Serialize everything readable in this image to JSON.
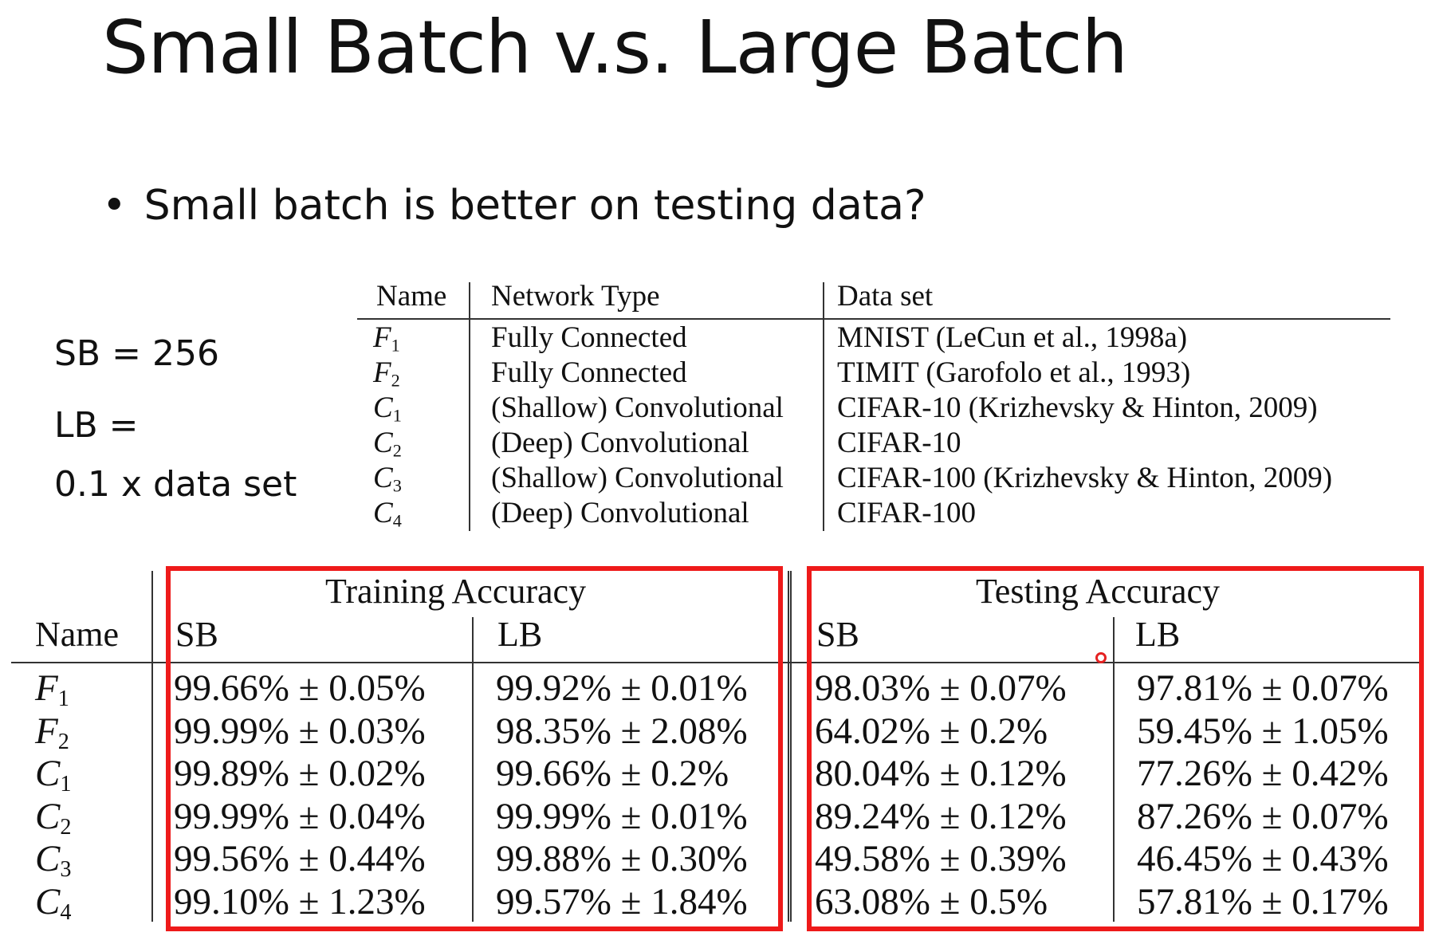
{
  "slide": {
    "title": "Small Batch v.s. Large Batch",
    "bullet_marker": "•",
    "bullet": "Small batch is better on testing data?",
    "sb_text": "SB = 256",
    "lb_text_line1": "LB =",
    "lb_text_line2": "0.1 x data set"
  },
  "network_table": {
    "headers": [
      "Name",
      "Network Type",
      "Data set"
    ],
    "rows": [
      {
        "name": "F",
        "sub": "1",
        "type": "Fully Connected",
        "dataset": "MNIST (LeCun et al., 1998a)"
      },
      {
        "name": "F",
        "sub": "2",
        "type": "Fully Connected",
        "dataset": "TIMIT (Garofolo et al., 1993)"
      },
      {
        "name": "C",
        "sub": "1",
        "type": "(Shallow) Convolutional",
        "dataset": "CIFAR-10 (Krizhevsky & Hinton, 2009)"
      },
      {
        "name": "C",
        "sub": "2",
        "type": "(Deep) Convolutional",
        "dataset": "CIFAR-10"
      },
      {
        "name": "C",
        "sub": "3",
        "type": "(Shallow) Convolutional",
        "dataset": "CIFAR-100 (Krizhevsky & Hinton, 2009)"
      },
      {
        "name": "C",
        "sub": "4",
        "type": "(Deep) Convolutional",
        "dataset": "CIFAR-100"
      }
    ]
  },
  "accuracy_table": {
    "name_header": "Name",
    "training_header": "Training Accuracy",
    "testing_header": "Testing Accuracy",
    "sb_label": "SB",
    "lb_label": "LB",
    "rows": [
      {
        "name": "F",
        "sub": "1",
        "train_sb": "99.66% ± 0.05%",
        "train_lb": "99.92% ± 0.01%",
        "test_sb": "98.03% ± 0.07%",
        "test_lb": "97.81% ± 0.07%"
      },
      {
        "name": "F",
        "sub": "2",
        "train_sb": "99.99% ± 0.03%",
        "train_lb": "98.35% ± 2.08%",
        "test_sb": "64.02% ± 0.2%",
        "test_lb": "59.45% ± 1.05%"
      },
      {
        "name": "C",
        "sub": "1",
        "train_sb": "99.89% ± 0.02%",
        "train_lb": "99.66% ± 0.2%",
        "test_sb": "80.04% ± 0.12%",
        "test_lb": "77.26% ± 0.42%"
      },
      {
        "name": "C",
        "sub": "2",
        "train_sb": "99.99% ± 0.04%",
        "train_lb": "99.99% ± 0.01%",
        "test_sb": "89.24% ± 0.12%",
        "test_lb": "87.26% ± 0.07%"
      },
      {
        "name": "C",
        "sub": "3",
        "train_sb": "99.56% ± 0.44%",
        "train_lb": "99.88% ± 0.30%",
        "test_sb": "49.58% ± 0.39%",
        "test_lb": "46.45% ± 0.43%"
      },
      {
        "name": "C",
        "sub": "4",
        "train_sb": "99.10% ± 1.23%",
        "train_lb": "99.57% ± 1.84%",
        "test_sb": "63.08% ± 0.5%",
        "test_lb": "57.81% ± 0.17%"
      }
    ]
  },
  "colors": {
    "highlight_box": "#ee1a1a",
    "text": "#111111",
    "background": "#ffffff"
  }
}
